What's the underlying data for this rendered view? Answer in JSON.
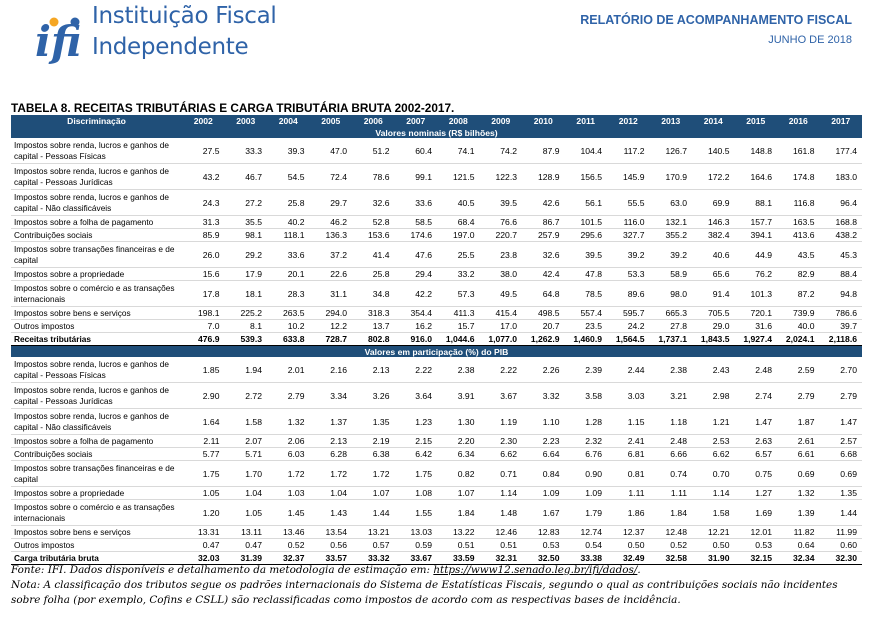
{
  "header": {
    "logo_text": "ifi",
    "institution_line1": "Instituição Fiscal",
    "institution_line2": "Independente",
    "report_title": "RELATÓRIO DE ACOMPANHAMENTO FISCAL",
    "report_date": "JUNHO DE 2018",
    "brand_color": "#2f63a8",
    "accent_color": "#f5a623"
  },
  "table": {
    "title": "TABELA 8. RECEITAS TRIBUTÁRIAS E CARGA TRIBUTÁRIA BRUTA 2002-2017.",
    "header_color": "#1f4e79",
    "column_label": "Discriminação",
    "years": [
      "2002",
      "2003",
      "2004",
      "2005",
      "2006",
      "2007",
      "2008",
      "2009",
      "2010",
      "2011",
      "2012",
      "2013",
      "2014",
      "2015",
      "2016",
      "2017"
    ],
    "sections": [
      {
        "title": "Valores nominais (R$ bilhões)",
        "rows": [
          {
            "label": "Impostos sobre renda, lucros e ganhos de capital - Pessoas Físicas",
            "two_line": true,
            "total": false,
            "values": [
              "27.5",
              "33.3",
              "39.3",
              "47.0",
              "51.2",
              "60.4",
              "74.1",
              "74.2",
              "87.9",
              "104.4",
              "117.2",
              "126.7",
              "140.5",
              "148.8",
              "161.8",
              "177.4"
            ]
          },
          {
            "label": "Impostos sobre renda, lucros e ganhos de capital - Pessoas Jurídicas",
            "two_line": true,
            "total": false,
            "values": [
              "43.2",
              "46.7",
              "54.5",
              "72.4",
              "78.6",
              "99.1",
              "121.5",
              "122.3",
              "128.9",
              "156.5",
              "145.9",
              "170.9",
              "172.2",
              "164.6",
              "174.8",
              "183.0"
            ]
          },
          {
            "label": "Impostos sobre renda, lucros e ganhos de capital - Não classificáveis",
            "two_line": true,
            "total": false,
            "values": [
              "24.3",
              "27.2",
              "25.8",
              "29.7",
              "32.6",
              "33.6",
              "40.5",
              "39.5",
              "42.6",
              "56.1",
              "55.5",
              "63.0",
              "69.9",
              "88.1",
              "116.8",
              "96.4"
            ]
          },
          {
            "label": "Impostos sobre a folha de pagamento",
            "two_line": false,
            "total": false,
            "values": [
              "31.3",
              "35.5",
              "40.2",
              "46.2",
              "52.8",
              "58.5",
              "68.4",
              "76.6",
              "86.7",
              "101.5",
              "116.0",
              "132.1",
              "146.3",
              "157.7",
              "163.5",
              "168.8"
            ]
          },
          {
            "label": "Contribuições sociais",
            "two_line": false,
            "total": false,
            "values": [
              "85.9",
              "98.1",
              "118.1",
              "136.3",
              "153.6",
              "174.6",
              "197.0",
              "220.7",
              "257.9",
              "295.6",
              "327.7",
              "355.2",
              "382.4",
              "394.1",
              "413.6",
              "438.2"
            ]
          },
          {
            "label": "Impostos sobre transações financeiras e de capital",
            "two_line": true,
            "total": false,
            "values": [
              "26.0",
              "29.2",
              "33.6",
              "37.2",
              "41.4",
              "47.6",
              "25.5",
              "23.8",
              "32.6",
              "39.5",
              "39.2",
              "39.2",
              "40.6",
              "44.9",
              "43.5",
              "45.3"
            ]
          },
          {
            "label": "Impostos sobre a propriedade",
            "two_line": false,
            "total": false,
            "values": [
              "15.6",
              "17.9",
              "20.1",
              "22.6",
              "25.8",
              "29.4",
              "33.2",
              "38.0",
              "42.4",
              "47.8",
              "53.3",
              "58.9",
              "65.6",
              "76.2",
              "82.9",
              "88.4"
            ]
          },
          {
            "label": "Impostos sobre o comércio e as transações internacionais",
            "two_line": true,
            "total": false,
            "values": [
              "17.8",
              "18.1",
              "28.3",
              "31.1",
              "34.8",
              "42.2",
              "57.3",
              "49.5",
              "64.8",
              "78.5",
              "89.6",
              "98.0",
              "91.4",
              "101.3",
              "87.2",
              "94.8"
            ]
          },
          {
            "label": "Impostos sobre bens e serviços",
            "two_line": false,
            "total": false,
            "values": [
              "198.1",
              "225.2",
              "263.5",
              "294.0",
              "318.3",
              "354.4",
              "411.3",
              "415.4",
              "498.5",
              "557.4",
              "595.7",
              "665.3",
              "705.5",
              "720.1",
              "739.9",
              "786.6"
            ]
          },
          {
            "label": "Outros impostos",
            "two_line": false,
            "total": false,
            "values": [
              "7.0",
              "8.1",
              "10.2",
              "12.2",
              "13.7",
              "16.2",
              "15.7",
              "17.0",
              "20.7",
              "23.5",
              "24.2",
              "27.8",
              "29.0",
              "31.6",
              "40.0",
              "39.7"
            ]
          },
          {
            "label": "Receitas tributárias",
            "two_line": false,
            "total": true,
            "values": [
              "476.9",
              "539.3",
              "633.8",
              "728.7",
              "802.8",
              "916.0",
              "1,044.6",
              "1,077.0",
              "1,262.9",
              "1,460.9",
              "1,564.5",
              "1,737.1",
              "1,843.5",
              "1,927.4",
              "2,024.1",
              "2,118.6"
            ]
          }
        ]
      },
      {
        "title": "Valores em participação (%) do PIB",
        "rows": [
          {
            "label": "Impostos sobre renda, lucros e ganhos de capital - Pessoas Físicas",
            "two_line": true,
            "total": false,
            "values": [
              "1.85",
              "1.94",
              "2.01",
              "2.16",
              "2.13",
              "2.22",
              "2.38",
              "2.22",
              "2.26",
              "2.39",
              "2.44",
              "2.38",
              "2.43",
              "2.48",
              "2.59",
              "2.70"
            ]
          },
          {
            "label": "Impostos sobre renda, lucros e ganhos de capital - Pessoas Jurídicas",
            "two_line": true,
            "total": false,
            "values": [
              "2.90",
              "2.72",
              "2.79",
              "3.34",
              "3.26",
              "3.64",
              "3.91",
              "3.67",
              "3.32",
              "3.58",
              "3.03",
              "3.21",
              "2.98",
              "2.74",
              "2.79",
              "2.79"
            ]
          },
          {
            "label": "Impostos sobre renda, lucros e ganhos de capital - Não classificáveis",
            "two_line": true,
            "total": false,
            "values": [
              "1.64",
              "1.58",
              "1.32",
              "1.37",
              "1.35",
              "1.23",
              "1.30",
              "1.19",
              "1.10",
              "1.28",
              "1.15",
              "1.18",
              "1.21",
              "1.47",
              "1.87",
              "1.47"
            ]
          },
          {
            "label": "Impostos sobre a folha de pagamento",
            "two_line": false,
            "total": false,
            "values": [
              "2.11",
              "2.07",
              "2.06",
              "2.13",
              "2.19",
              "2.15",
              "2.20",
              "2.30",
              "2.23",
              "2.32",
              "2.41",
              "2.48",
              "2.53",
              "2.63",
              "2.61",
              "2.57"
            ]
          },
          {
            "label": "Contribuições sociais",
            "two_line": false,
            "total": false,
            "values": [
              "5.77",
              "5.71",
              "6.03",
              "6.28",
              "6.38",
              "6.42",
              "6.34",
              "6.62",
              "6.64",
              "6.76",
              "6.81",
              "6.66",
              "6.62",
              "6.57",
              "6.61",
              "6.68"
            ]
          },
          {
            "label": "Impostos sobre transações financeiras e de capital",
            "two_line": true,
            "total": false,
            "values": [
              "1.75",
              "1.70",
              "1.72",
              "1.72",
              "1.72",
              "1.75",
              "0.82",
              "0.71",
              "0.84",
              "0.90",
              "0.81",
              "0.74",
              "0.70",
              "0.75",
              "0.69",
              "0.69"
            ]
          },
          {
            "label": "Impostos sobre a propriedade",
            "two_line": false,
            "total": false,
            "values": [
              "1.05",
              "1.04",
              "1.03",
              "1.04",
              "1.07",
              "1.08",
              "1.07",
              "1.14",
              "1.09",
              "1.09",
              "1.11",
              "1.11",
              "1.14",
              "1.27",
              "1.32",
              "1.35"
            ]
          },
          {
            "label": "Impostos sobre o comércio e as transações internacionais",
            "two_line": true,
            "total": false,
            "values": [
              "1.20",
              "1.05",
              "1.45",
              "1.43",
              "1.44",
              "1.55",
              "1.84",
              "1.48",
              "1.67",
              "1.79",
              "1.86",
              "1.84",
              "1.58",
              "1.69",
              "1.39",
              "1.44"
            ]
          },
          {
            "label": "Impostos sobre bens e serviços",
            "two_line": false,
            "total": false,
            "values": [
              "13.31",
              "13.11",
              "13.46",
              "13.54",
              "13.21",
              "13.03",
              "13.22",
              "12.46",
              "12.83",
              "12.74",
              "12.37",
              "12.48",
              "12.21",
              "12.01",
              "11.82",
              "11.99"
            ]
          },
          {
            "label": "Outros impostos",
            "two_line": false,
            "total": false,
            "values": [
              "0.47",
              "0.47",
              "0.52",
              "0.56",
              "0.57",
              "0.59",
              "0.51",
              "0.51",
              "0.53",
              "0.54",
              "0.50",
              "0.52",
              "0.50",
              "0.53",
              "0.64",
              "0.60"
            ]
          },
          {
            "label": "Carga tributária bruta",
            "two_line": false,
            "total": true,
            "values": [
              "32.03",
              "31.39",
              "32.37",
              "33.57",
              "33.32",
              "33.67",
              "33.59",
              "32.31",
              "32.50",
              "33.38",
              "32.49",
              "32.58",
              "31.90",
              "32.15",
              "32.34",
              "32.30"
            ]
          }
        ]
      }
    ]
  },
  "notes": {
    "source_prefix": "Fonte: IFI. Dados disponíveis e detalhamento da metodologia de estimação em: ",
    "source_link": "https://www12.senado.leg.br/ifi/dados/",
    "source_suffix": ".",
    "note": "Nota: A classificação dos tributos segue os padrões internacionais do Sistema de Estatísticas Fiscais, segundo o qual as contribuições sociais não incidentes sobre folha (por exemplo, Cofins e CSLL) são reclassificadas como impostos de acordo com as respectivas bases de incidência."
  }
}
